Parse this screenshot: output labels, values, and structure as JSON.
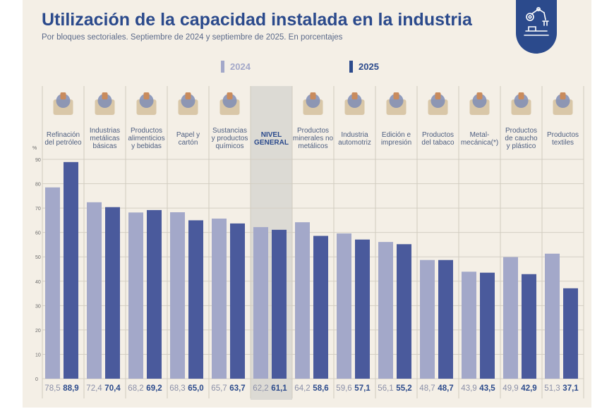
{
  "header": {
    "title": "Utilización de la capacidad instalada en la industria",
    "subtitle": "Por bloques sectoriales. Septiembre de 2024 y septiembre de 2025. En porcentajes"
  },
  "badge": {
    "icon": "robot-arm-icon"
  },
  "colors": {
    "series_2024": "#a3a8c9",
    "series_2025": "#4a5a9c",
    "accent": "#2b4a8c",
    "background": "#f4efe6",
    "highlight": "#dcdad4"
  },
  "chart_data": {
    "type": "bar",
    "ylabel": "%",
    "ylim": [
      0,
      90
    ],
    "yticks": [
      0,
      10,
      20,
      30,
      40,
      50,
      60,
      70,
      80,
      90
    ],
    "grid": true,
    "legend_position": "top",
    "categories": [
      [
        "Refinación",
        "del petróleo"
      ],
      [
        "Industrias",
        "metálicas",
        "básicas"
      ],
      [
        "Productos",
        "alimenticios",
        "y bebidas"
      ],
      [
        "Papel y",
        "cartón"
      ],
      [
        "Sustancias",
        "y productos",
        "químicos"
      ],
      [
        "NIVEL",
        "GENERAL"
      ],
      [
        "Productos",
        "minerales no",
        "metálicos"
      ],
      [
        "Industria",
        "automotriz"
      ],
      [
        "Edición e",
        "impresión"
      ],
      [
        "Productos",
        "del tabaco"
      ],
      [
        "Metal-",
        "mecánica(*)"
      ],
      [
        "Productos",
        "de caucho",
        "y plástico"
      ],
      [
        "Productos",
        "textiles"
      ]
    ],
    "category_icons": [
      "refinery-icon",
      "saw-blade-icon",
      "food-icon",
      "box-icon",
      "flask-icon",
      "",
      "mineral-cart-icon",
      "car-icon",
      "paper-roll-icon",
      "pipe-icon",
      "gears-icon",
      "tires-icon",
      "fabric-icon"
    ],
    "highlight_category": 5,
    "series": [
      {
        "name": "2024",
        "values": [
          78.5,
          72.4,
          68.2,
          68.3,
          65.7,
          62.2,
          64.2,
          59.6,
          56.1,
          48.7,
          43.9,
          49.9,
          51.3
        ],
        "labels": [
          "78,5",
          "72,4",
          "68,2",
          "68,3",
          "65,7",
          "62,2",
          "64,2",
          "59,6",
          "56,1",
          "48,7",
          "43,9",
          "49,9",
          "51,3"
        ]
      },
      {
        "name": "2025",
        "values": [
          88.9,
          70.4,
          69.2,
          65.0,
          63.7,
          61.1,
          58.6,
          57.1,
          55.2,
          48.7,
          43.5,
          42.9,
          37.1
        ],
        "labels": [
          "88,9",
          "70,4",
          "69,2",
          "65,0",
          "63,7",
          "61,1",
          "58,6",
          "57,1",
          "55,2",
          "48,7",
          "43,5",
          "42,9",
          "37,1"
        ]
      }
    ]
  }
}
